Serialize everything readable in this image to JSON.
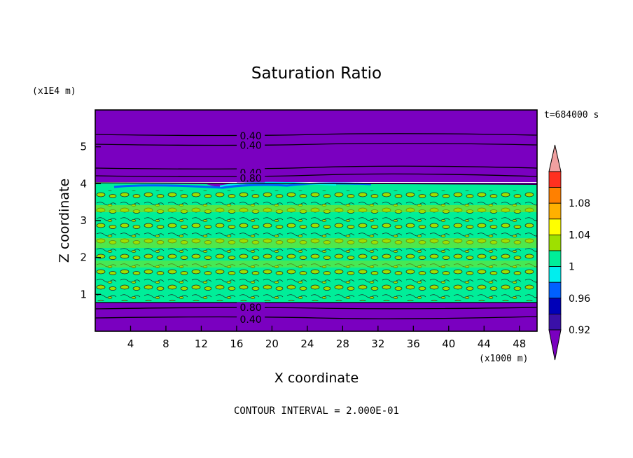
{
  "chart_data": {
    "type": "contour",
    "title": "Saturation Ratio",
    "xlabel": "X coordinate",
    "ylabel": "Z coordinate",
    "x_unit": "(x1000 m)",
    "y_unit": "(x1E4 m)",
    "time_label": "t=684000 s",
    "footer": "CONTOUR INTERVAL = 2.000E-01",
    "xlim": [
      0,
      50
    ],
    "ylim": [
      0,
      6
    ],
    "xticks": [
      "4",
      "8",
      "12",
      "16",
      "20",
      "24",
      "28",
      "32",
      "36",
      "40",
      "44",
      "48"
    ],
    "yticks": [
      "1",
      "2",
      "3",
      "4",
      "5"
    ],
    "contour_labels": [
      {
        "text": "0.40",
        "x": 17.6,
        "z": 5.3
      },
      {
        "text": "0.40",
        "x": 17.6,
        "z": 5.04
      },
      {
        "text": "0.40",
        "x": 17.6,
        "z": 4.3
      },
      {
        "text": "0.80",
        "x": 17.6,
        "z": 4.15
      },
      {
        "text": "0.80",
        "x": 17.6,
        "z": 0.65
      },
      {
        "text": "0.40",
        "x": 17.6,
        "z": 0.32
      }
    ],
    "fields": {
      "dry_upper": {
        "z": [
          4.05,
          6.0
        ],
        "value": "< 0.92"
      },
      "moist_layer": {
        "z": [
          0.78,
          4.05
        ],
        "range": [
          0.96,
          1.04
        ]
      },
      "dry_lower": {
        "z": [
          0.0,
          0.78
        ],
        "value": "< 0.92"
      }
    },
    "colorbar": {
      "labels": [
        "1.08",
        "1.04",
        "1",
        "0.96",
        "0.92"
      ],
      "colors": [
        "#f0a0a0",
        "#ff3020",
        "#ff8000",
        "#ffb000",
        "#ffff00",
        "#9ee000",
        "#00ee99",
        "#00eeee",
        "#0060ff",
        "#0000b8",
        "#3a10a8",
        "#7a00c0"
      ]
    }
  }
}
